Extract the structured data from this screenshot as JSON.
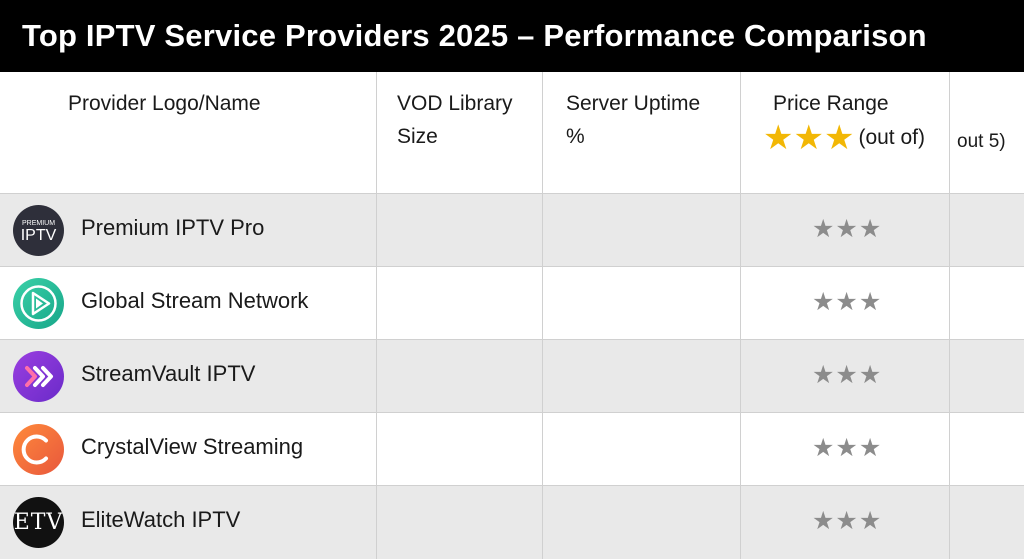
{
  "title": "Top IPTV Service Providers 2025 – Performance Comparison",
  "header": {
    "col_provider": "Provider Logo/Name",
    "col_vod_line1": "VOD Library",
    "col_vod_line2": "Size",
    "col_uptime_line1": "Server Uptime",
    "col_uptime_line2": "%",
    "col_price": "Price Range",
    "col_price_stars": "★★★",
    "col_price_note": "(out of)",
    "col_extra": "out 5)"
  },
  "rows": [
    {
      "name": "Premium IPTV Pro",
      "logo_icon": "iptv-logo-icon",
      "logo_text_small": "PREMIUM",
      "logo_text": "IPTV",
      "rating": "★★★"
    },
    {
      "name": "Global Stream Network",
      "logo_icon": "play-triangle-logo-icon",
      "rating": "★★★"
    },
    {
      "name": "StreamVault IPTV",
      "logo_icon": "double-chevron-logo-icon",
      "logo_text": "»",
      "rating": "★★★"
    },
    {
      "name": "CrystalView Streaming",
      "logo_icon": "c-ring-logo-icon",
      "rating": "★★★"
    },
    {
      "name": "EliteWatch IPTV",
      "logo_icon": "etv-logo-icon",
      "logo_text": "ETV",
      "rating": "★★★"
    }
  ],
  "colors": {
    "title_bg": "#000000",
    "gold_star": "#f2b705",
    "grey_star": "#8c8c8c",
    "shaded_row": "#e9e9e9"
  }
}
